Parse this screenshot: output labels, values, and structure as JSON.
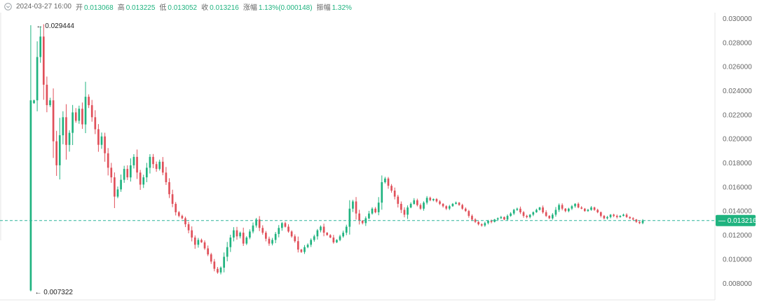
{
  "info": {
    "date": "2024-03-27 16:00",
    "open_label": "开",
    "open": "0.013068",
    "high_label": "高",
    "high": "0.013225",
    "low_label": "低",
    "low": "0.013052",
    "close_label": "收",
    "close": "0.013216",
    "change_label": "涨幅",
    "change": "1.13%(0.000148)",
    "amp_label": "振幅",
    "amp": "1.32%"
  },
  "colors": {
    "up": "#1fb37f",
    "down": "#e0505a",
    "axis_text": "#666666",
    "last_line": "#2fb39a"
  },
  "chart_data": {
    "type": "candlestick",
    "ylim": [
      0.0072,
      0.0302
    ],
    "y_ticks": [
      "0.030000",
      "0.028000",
      "0.026000",
      "0.024000",
      "0.022000",
      "0.020000",
      "0.018000",
      "0.016000",
      "0.014000",
      "0.012000",
      "0.010000",
      "0.008000"
    ],
    "high_marker": {
      "value": 0.029444,
      "label": "← 0.029444"
    },
    "low_marker": {
      "value": 0.007322,
      "label": "← 0.007322"
    },
    "last_price": {
      "value": 0.013216,
      "label": "0.013216"
    },
    "closes": [
      0.0232,
      0.0268,
      0.0285,
      0.0245,
      0.0228,
      0.0232,
      0.0198,
      0.0178,
      0.0203,
      0.0218,
      0.0195,
      0.0205,
      0.0222,
      0.0215,
      0.0225,
      0.0212,
      0.0235,
      0.0228,
      0.0218,
      0.0208,
      0.0195,
      0.0202,
      0.0188,
      0.0176,
      0.0168,
      0.0152,
      0.0158,
      0.0166,
      0.0175,
      0.0168,
      0.0178,
      0.0185,
      0.0172,
      0.0162,
      0.0168,
      0.0176,
      0.0185,
      0.0179,
      0.0175,
      0.0181,
      0.0172,
      0.0164,
      0.0154,
      0.0146,
      0.0139,
      0.0136,
      0.0134,
      0.0129,
      0.0124,
      0.0118,
      0.0112,
      0.0116,
      0.0114,
      0.0109,
      0.0104,
      0.0098,
      0.0092,
      0.0089,
      0.0093,
      0.0102,
      0.011,
      0.0118,
      0.0124,
      0.0119,
      0.0122,
      0.0113,
      0.0118,
      0.0123,
      0.0128,
      0.0133,
      0.0126,
      0.0122,
      0.0117,
      0.0113,
      0.0116,
      0.0121,
      0.0126,
      0.013,
      0.0127,
      0.0123,
      0.0119,
      0.0115,
      0.0108,
      0.0106,
      0.011,
      0.0112,
      0.0116,
      0.0119,
      0.0124,
      0.0127,
      0.0122,
      0.012,
      0.0118,
      0.0114,
      0.0116,
      0.0119,
      0.0122,
      0.0127,
      0.0142,
      0.0148,
      0.0138,
      0.0132,
      0.013,
      0.0134,
      0.0138,
      0.0142,
      0.0139,
      0.0147,
      0.0164,
      0.0167,
      0.0161,
      0.0157,
      0.0152,
      0.0146,
      0.0141,
      0.0137,
      0.0143,
      0.0146,
      0.0149,
      0.0145,
      0.0142,
      0.0147,
      0.0151,
      0.0149,
      0.015,
      0.0148,
      0.0146,
      0.0144,
      0.0142,
      0.0144,
      0.0146,
      0.0147,
      0.0145,
      0.0142,
      0.014,
      0.0136,
      0.0133,
      0.0131,
      0.0129,
      0.0128,
      0.013,
      0.0132,
      0.0131,
      0.0133,
      0.0134,
      0.0135,
      0.0133,
      0.0136,
      0.0138,
      0.0141,
      0.0142,
      0.0139,
      0.0136,
      0.0135,
      0.0137,
      0.0139,
      0.0141,
      0.0143,
      0.0139,
      0.0136,
      0.0134,
      0.0137,
      0.0141,
      0.0145,
      0.0142,
      0.014,
      0.0142,
      0.0144,
      0.0146,
      0.0143,
      0.0142,
      0.014,
      0.0141,
      0.0143,
      0.0141,
      0.0139,
      0.0136,
      0.0134,
      0.0135,
      0.0137,
      0.0136,
      0.0135,
      0.0136,
      0.0137,
      0.0135,
      0.0134,
      0.0133,
      0.0131,
      0.013,
      0.01322
    ]
  }
}
